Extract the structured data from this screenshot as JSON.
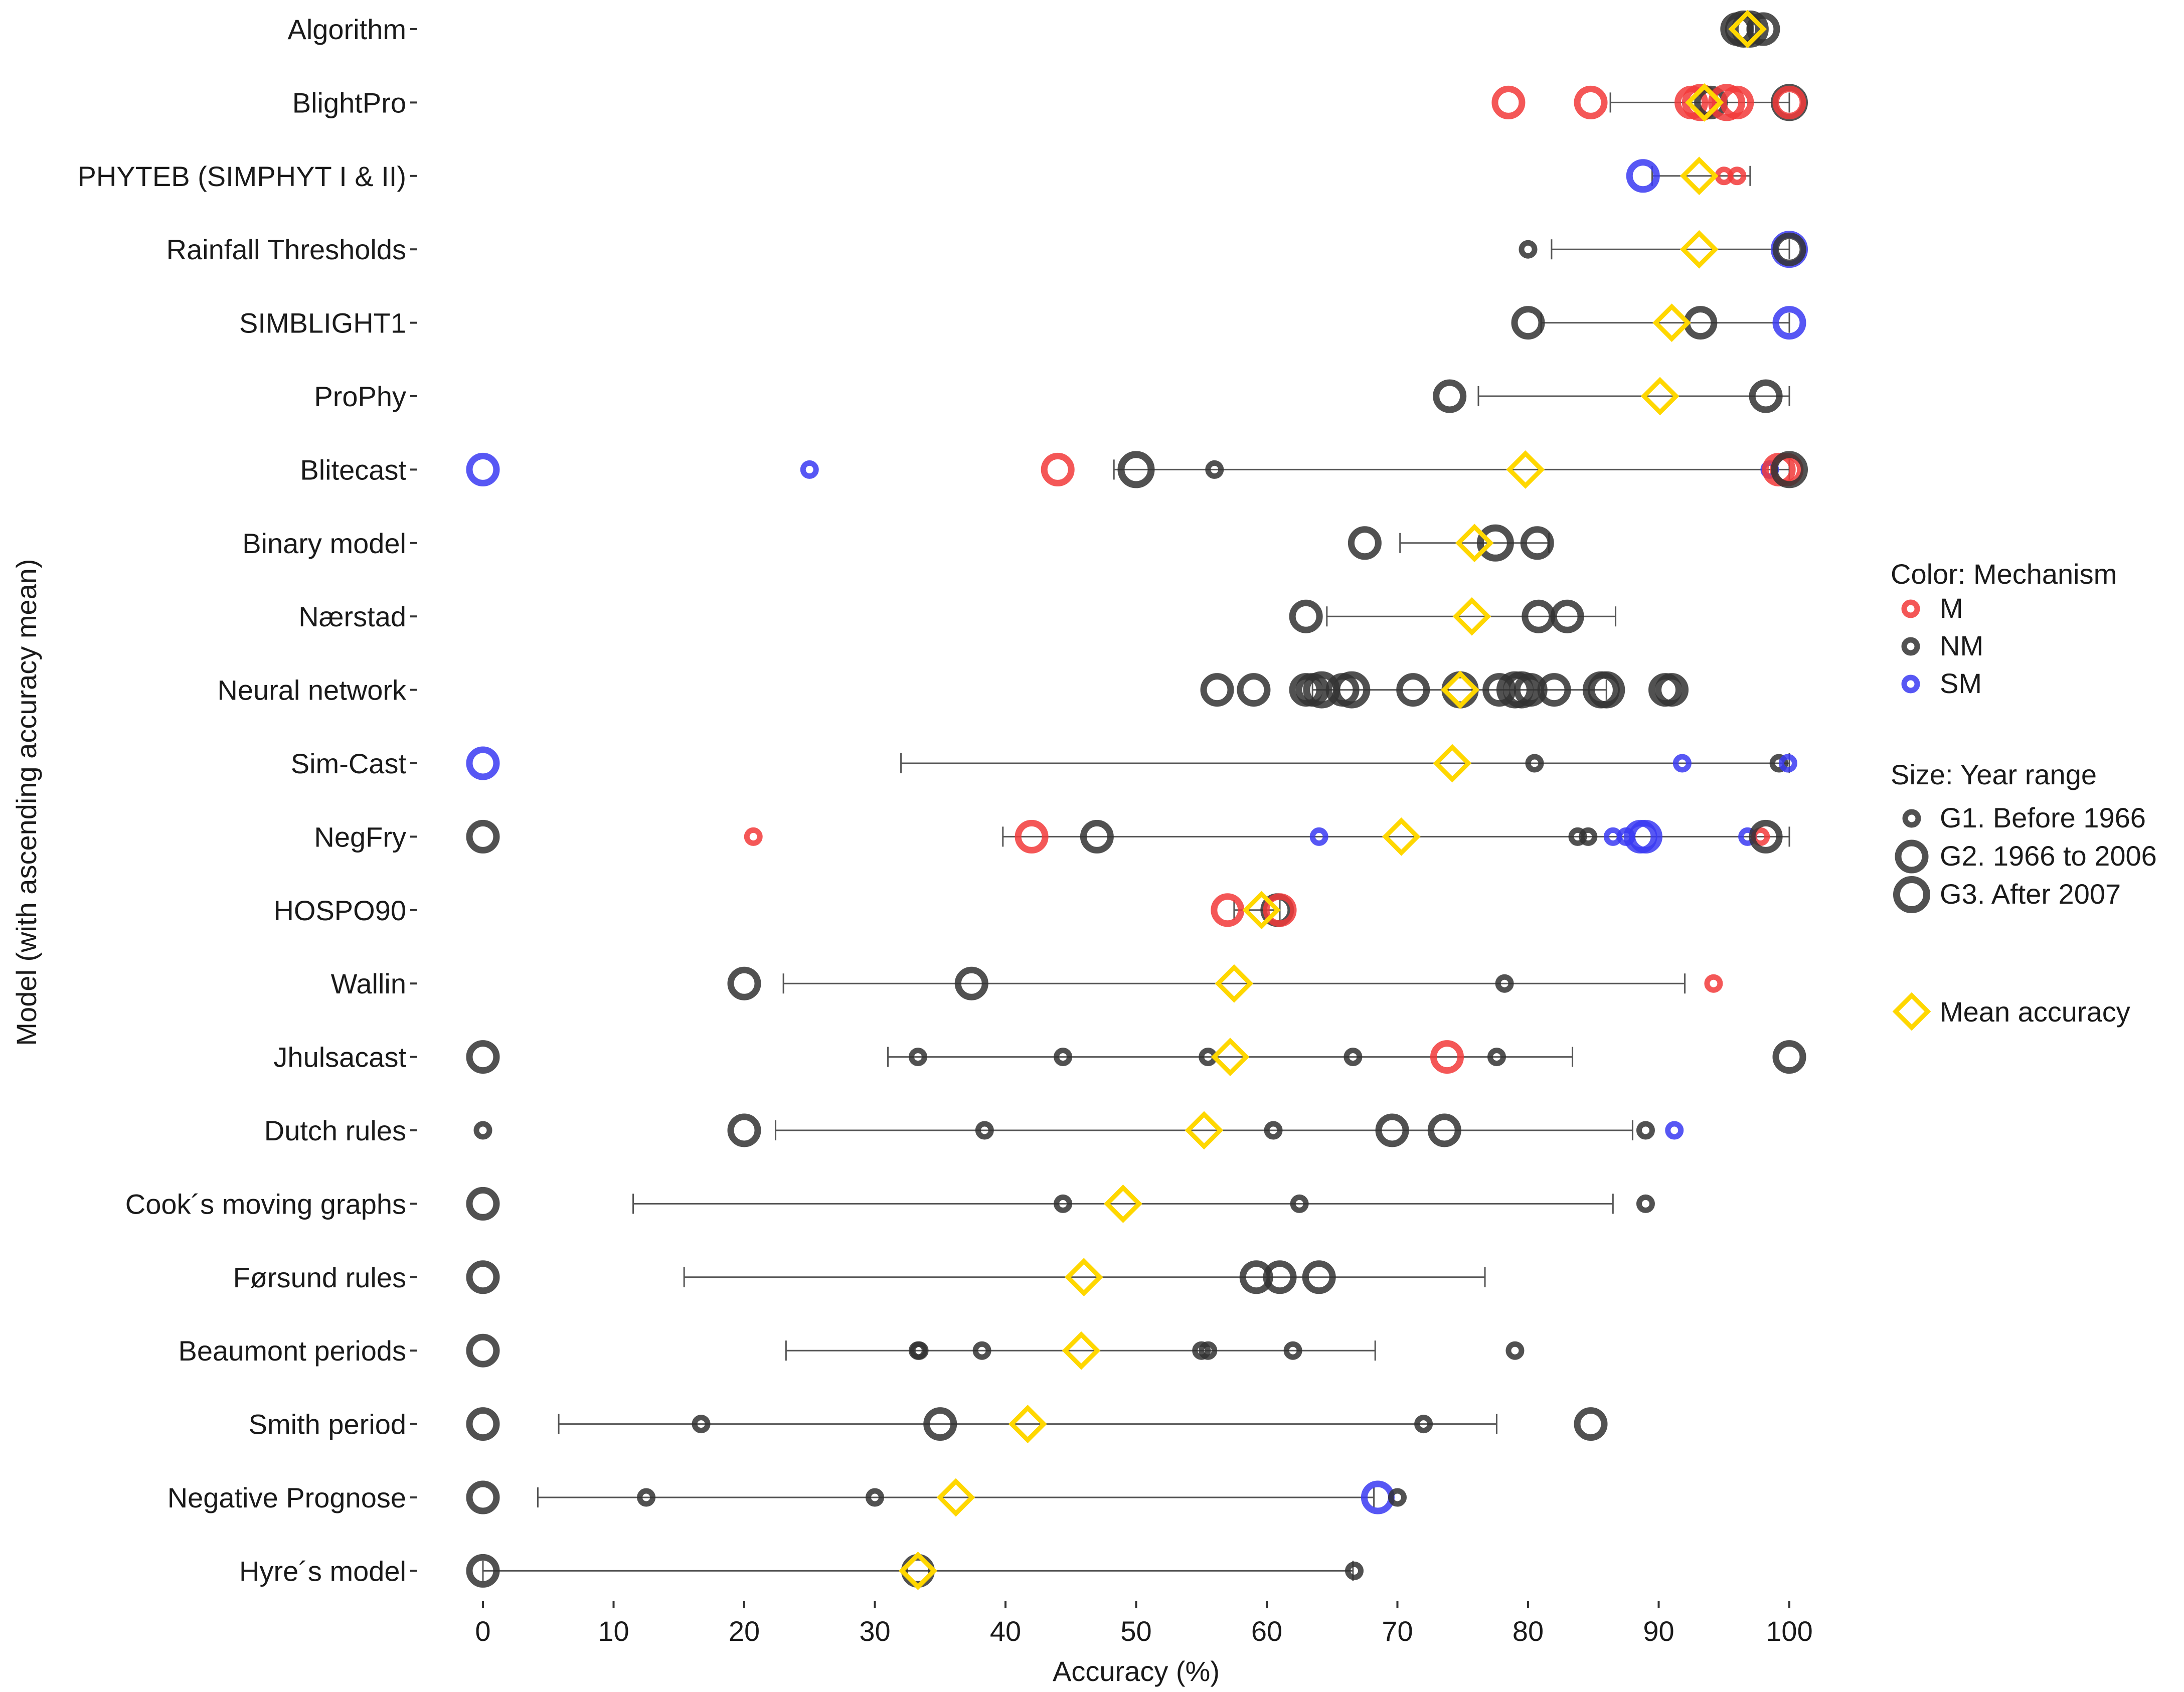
{
  "chart_data": {
    "type": "scatter",
    "title": "",
    "xlabel": "Accuracy (%)",
    "ylabel": "Model (with ascending accuracy mean)",
    "xlim": [
      0,
      100
    ],
    "xticks": [
      "0",
      "10",
      "20",
      "30",
      "40",
      "50",
      "60",
      "70",
      "80",
      "90",
      "100"
    ],
    "legend": {
      "placement": "right",
      "color_title": "Color: Mechanism",
      "colors": [
        {
          "key": "M",
          "label": "M",
          "color": "#f23a3a"
        },
        {
          "key": "NM",
          "label": "NM",
          "color": "#333333"
        },
        {
          "key": "SM",
          "label": "SM",
          "color": "#3a3af2"
        }
      ],
      "size_title": "Size: Year range",
      "sizes": [
        {
          "key": "G1",
          "label": "G1. Before 1966"
        },
        {
          "key": "G2",
          "label": "G2. 1966 to 2006"
        },
        {
          "key": "G3",
          "label": "G3. After 2007"
        }
      ],
      "mean_label": "Mean accuracy",
      "mean_color": "#ffd700"
    },
    "models": [
      {
        "name": "Algorithm",
        "mean": 96.8,
        "err": null,
        "points": [
          [
            96,
            "NM",
            "G2"
          ],
          [
            96.5,
            "NM",
            "G3"
          ],
          [
            97,
            "NM",
            "G3"
          ],
          [
            98,
            "NM",
            "G2"
          ]
        ]
      },
      {
        "name": "BlightPro",
        "mean": 93.5,
        "err": [
          86.3,
          100
        ],
        "points": [
          [
            78.5,
            "M",
            "G2"
          ],
          [
            84.8,
            "M",
            "G2"
          ],
          [
            92.5,
            "M",
            "G2"
          ],
          [
            93.2,
            "M",
            "G3"
          ],
          [
            94,
            "NM",
            "G2"
          ],
          [
            95.2,
            "M",
            "G3"
          ],
          [
            96,
            "M",
            "G2"
          ],
          [
            100,
            "NM",
            "G3"
          ],
          [
            100,
            "M",
            "G2"
          ]
        ]
      },
      {
        "name": "PHYTEB (SIMPHYT I & II)",
        "mean": 93.1,
        "err": [
          89.5,
          97
        ],
        "points": [
          [
            88.8,
            "SM",
            "G2"
          ],
          [
            95,
            "M",
            "G1"
          ],
          [
            96,
            "M",
            "G1"
          ]
        ]
      },
      {
        "name": "Rainfall Thresholds",
        "mean": 93.1,
        "err": [
          81.8,
          100
        ],
        "points": [
          [
            80,
            "NM",
            "G1"
          ],
          [
            100,
            "SM",
            "G3"
          ],
          [
            100,
            "NM",
            "G2"
          ]
        ]
      },
      {
        "name": "SIMBLIGHT1",
        "mean": 91,
        "err": [
          81,
          100
        ],
        "points": [
          [
            80,
            "NM",
            "G2"
          ],
          [
            93.2,
            "NM",
            "G2"
          ],
          [
            100,
            "SM",
            "G2"
          ]
        ]
      },
      {
        "name": "ProPhy",
        "mean": 90.1,
        "err": [
          76.2,
          100
        ],
        "points": [
          [
            74,
            "NM",
            "G2"
          ],
          [
            98.2,
            "NM",
            "G2"
          ]
        ]
      },
      {
        "name": "Blitecast",
        "mean": 79.8,
        "err": [
          48.3,
          100
        ],
        "points": [
          [
            0,
            "SM",
            "G2"
          ],
          [
            25,
            "SM",
            "G1"
          ],
          [
            44,
            "M",
            "G2"
          ],
          [
            50,
            "NM",
            "G3"
          ],
          [
            56,
            "NM",
            "G1"
          ],
          [
            98.5,
            "SM",
            "G1"
          ],
          [
            99.2,
            "M",
            "G2"
          ],
          [
            99.8,
            "M",
            "G2"
          ],
          [
            100,
            "NM",
            "G3"
          ]
        ]
      },
      {
        "name": "Binary model",
        "mean": 75.9,
        "err": [
          70.2,
          81.6
        ],
        "points": [
          [
            67.5,
            "NM",
            "G2"
          ],
          [
            77.5,
            "NM",
            "G3"
          ],
          [
            80.7,
            "NM",
            "G2"
          ]
        ]
      },
      {
        "name": "Nærstad",
        "mean": 75.7,
        "err": [
          64.6,
          86.7
        ],
        "points": [
          [
            63,
            "NM",
            "G2"
          ],
          [
            80.8,
            "NM",
            "G2"
          ],
          [
            83,
            "NM",
            "G2"
          ]
        ]
      },
      {
        "name": "Neural network",
        "mean": 74.8,
        "err": [
          63.5,
          86
        ],
        "points": [
          [
            56.2,
            "NM",
            "G2"
          ],
          [
            59,
            "NM",
            "G2"
          ],
          [
            63,
            "NM",
            "G2"
          ],
          [
            63.5,
            "NM",
            "G2"
          ],
          [
            64.2,
            "NM",
            "G3"
          ],
          [
            65.8,
            "NM",
            "G2"
          ],
          [
            66.5,
            "NM",
            "G3"
          ],
          [
            71.2,
            "NM",
            "G2"
          ],
          [
            74.8,
            "NM",
            "G3"
          ],
          [
            77.8,
            "NM",
            "G2"
          ],
          [
            79,
            "NM",
            "G3"
          ],
          [
            79.5,
            "NM",
            "G3"
          ],
          [
            80.2,
            "NM",
            "G2"
          ],
          [
            82,
            "NM",
            "G2"
          ],
          [
            85.6,
            "NM",
            "G3"
          ],
          [
            86,
            "NM",
            "G3"
          ],
          [
            90.5,
            "NM",
            "G2"
          ],
          [
            91,
            "NM",
            "G2"
          ]
        ]
      },
      {
        "name": "Sim-Cast",
        "mean": 74.2,
        "err": [
          32,
          100
        ],
        "points": [
          [
            0,
            "SM",
            "G2"
          ],
          [
            80.5,
            "NM",
            "G1"
          ],
          [
            91.8,
            "SM",
            "G1"
          ],
          [
            99.2,
            "NM",
            "G1"
          ],
          [
            99.9,
            "SM",
            "G1"
          ]
        ]
      },
      {
        "name": "NegFry",
        "mean": 70.3,
        "err": [
          39.8,
          100
        ],
        "points": [
          [
            0,
            "NM",
            "G2"
          ],
          [
            20.7,
            "M",
            "G1"
          ],
          [
            42,
            "M",
            "G2"
          ],
          [
            47,
            "NM",
            "G2"
          ],
          [
            64,
            "SM",
            "G1"
          ],
          [
            83.8,
            "NM",
            "G1"
          ],
          [
            84.6,
            "NM",
            "G1"
          ],
          [
            86.5,
            "SM",
            "G1"
          ],
          [
            87.5,
            "SM",
            "G1"
          ],
          [
            88.6,
            "SM",
            "G2"
          ],
          [
            89,
            "SM",
            "G2"
          ],
          [
            96.8,
            "SM",
            "G1"
          ],
          [
            97.8,
            "M",
            "G1"
          ],
          [
            98.2,
            "NM",
            "G2"
          ]
        ]
      },
      {
        "name": "HOSPO90",
        "mean": 59.6,
        "err": [
          57.5,
          61
        ],
        "points": [
          [
            57,
            "M",
            "G2"
          ],
          [
            60.8,
            "NM",
            "G2"
          ],
          [
            61,
            "M",
            "G2"
          ]
        ]
      },
      {
        "name": "Wallin",
        "mean": 57.5,
        "err": [
          23,
          92
        ],
        "points": [
          [
            20,
            "NM",
            "G2"
          ],
          [
            37.4,
            "NM",
            "G2"
          ],
          [
            78.2,
            "NM",
            "G1"
          ],
          [
            94.2,
            "M",
            "G1"
          ]
        ]
      },
      {
        "name": "Jhulsacast",
        "mean": 57.2,
        "err": [
          31,
          83.4
        ],
        "points": [
          [
            0,
            "NM",
            "G2"
          ],
          [
            33.3,
            "NM",
            "G1"
          ],
          [
            44.4,
            "NM",
            "G1"
          ],
          [
            55.5,
            "NM",
            "G1"
          ],
          [
            66.6,
            "NM",
            "G1"
          ],
          [
            73.8,
            "M",
            "G2"
          ],
          [
            77.6,
            "NM",
            "G1"
          ],
          [
            100,
            "NM",
            "G2"
          ]
        ]
      },
      {
        "name": "Dutch rules",
        "mean": 55.2,
        "err": [
          22.4,
          88
        ],
        "points": [
          [
            0,
            "NM",
            "G1"
          ],
          [
            20,
            "NM",
            "G2"
          ],
          [
            38.4,
            "NM",
            "G1"
          ],
          [
            60.5,
            "NM",
            "G1"
          ],
          [
            69.6,
            "NM",
            "G2"
          ],
          [
            73.6,
            "NM",
            "G2"
          ],
          [
            89,
            "NM",
            "G1"
          ],
          [
            91.2,
            "SM",
            "G1"
          ]
        ]
      },
      {
        "name": "Cook´s moving graphs",
        "mean": 49,
        "err": [
          11.5,
          86.5
        ],
        "points": [
          [
            0,
            "NM",
            "G2"
          ],
          [
            44.4,
            "NM",
            "G1"
          ],
          [
            62.5,
            "NM",
            "G1"
          ],
          [
            89,
            "NM",
            "G1"
          ]
        ]
      },
      {
        "name": "Førsund rules",
        "mean": 46,
        "err": [
          15.4,
          76.7
        ],
        "points": [
          [
            0,
            "NM",
            "G2"
          ],
          [
            59.2,
            "NM",
            "G2"
          ],
          [
            61,
            "NM",
            "G2"
          ],
          [
            64,
            "NM",
            "G2"
          ]
        ]
      },
      {
        "name": "Beaumont periods",
        "mean": 45.8,
        "err": [
          23.2,
          68.3
        ],
        "points": [
          [
            0,
            "NM",
            "G2"
          ],
          [
            33.3,
            "NM",
            "G1"
          ],
          [
            33.4,
            "NM",
            "G1"
          ],
          [
            38.2,
            "NM",
            "G1"
          ],
          [
            55,
            "NM",
            "G1"
          ],
          [
            55.5,
            "NM",
            "G1"
          ],
          [
            62,
            "NM",
            "G1"
          ],
          [
            79,
            "NM",
            "G1"
          ]
        ]
      },
      {
        "name": "Smith period",
        "mean": 41.7,
        "err": [
          5.8,
          77.6
        ],
        "points": [
          [
            0,
            "NM",
            "G2"
          ],
          [
            16.7,
            "NM",
            "G1"
          ],
          [
            35,
            "NM",
            "G2"
          ],
          [
            72,
            "NM",
            "G1"
          ],
          [
            84.8,
            "NM",
            "G2"
          ]
        ]
      },
      {
        "name": "Negative Prognose",
        "mean": 36.2,
        "err": [
          4.2,
          68.2
        ],
        "points": [
          [
            0,
            "NM",
            "G2"
          ],
          [
            12.5,
            "NM",
            "G1"
          ],
          [
            30,
            "NM",
            "G1"
          ],
          [
            68.5,
            "SM",
            "G2"
          ],
          [
            70,
            "NM",
            "G1"
          ]
        ]
      },
      {
        "name": "Hyre´s model",
        "mean": 33.3,
        "err": [
          0,
          66.6
        ],
        "points": [
          [
            0,
            "NM",
            "G2"
          ],
          [
            33.3,
            "NM",
            "G2"
          ],
          [
            66.7,
            "NM",
            "G1"
          ]
        ]
      }
    ]
  }
}
